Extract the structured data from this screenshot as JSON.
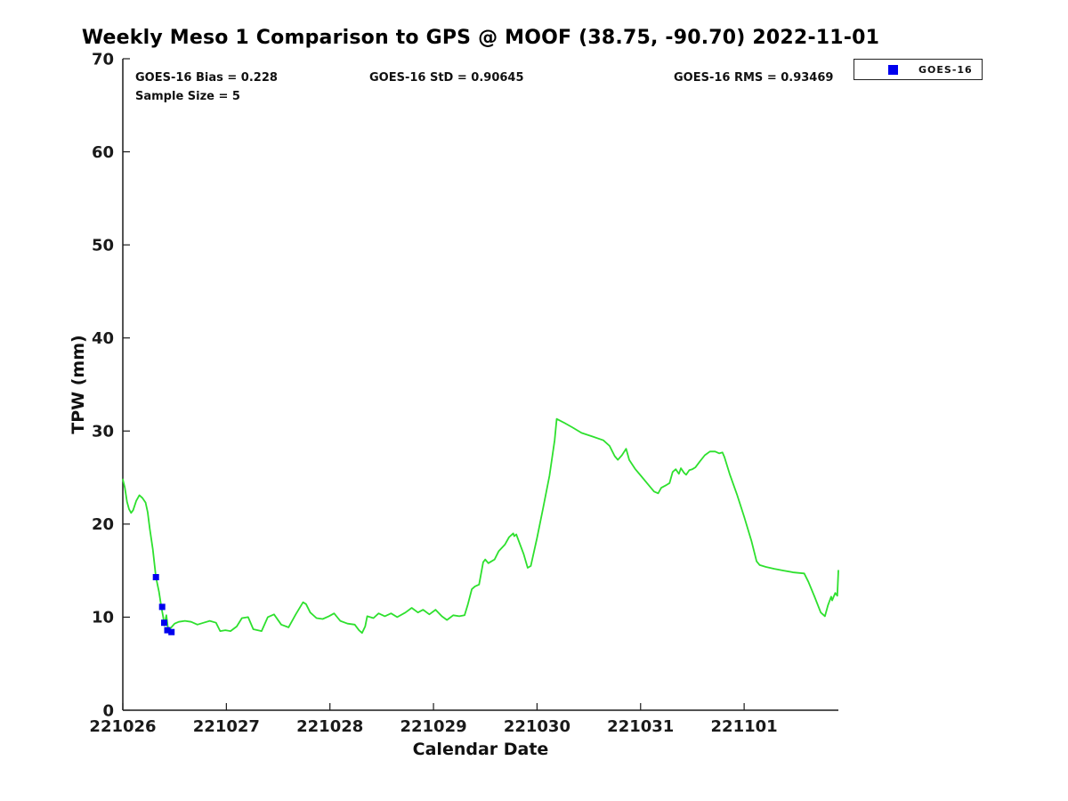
{
  "title": "Weekly Meso 1 Comparison to GPS @ MOOF (38.75, -90.70) 2022-11-01",
  "annotations": {
    "bias": "GOES-16 Bias = 0.228",
    "std": "GOES-16 StD = 0.90645",
    "rms": "GOES-16 RMS = 0.93469",
    "sample_size": "Sample Size = 5"
  },
  "legend": {
    "position": "top-right",
    "entries": [
      {
        "label": "GOES-16",
        "marker": "square",
        "marker_color": "#0000ee"
      }
    ]
  },
  "colors": {
    "gps_line": "#2ee02e",
    "goes16_marker": "#0000ee",
    "axis": "#1a1a1a",
    "background": "#ffffff"
  },
  "chart_data": {
    "type": "line",
    "title": "Weekly Meso 1 Comparison to GPS @ MOOF (38.75, -90.70) 2022-11-01",
    "xlabel": "Calendar Date",
    "ylabel": "TPW (mm)",
    "ylim": [
      0,
      70
    ],
    "yticks": [
      0,
      10,
      20,
      30,
      40,
      50,
      60,
      70
    ],
    "xtick_labels": [
      "221026",
      "221027",
      "221028",
      "221029",
      "221030",
      "221031",
      "221101"
    ],
    "xtick_positions_days": [
      0,
      1,
      2,
      3,
      4,
      5,
      6
    ],
    "xlim_days": [
      0,
      6.91
    ],
    "grid": false,
    "legend_position": "top-right",
    "series": [
      {
        "name": "GPS",
        "type": "line",
        "color": "#2ee02e",
        "points": [
          [
            0.0,
            24.8
          ],
          [
            0.02,
            23.9
          ],
          [
            0.04,
            22.4
          ],
          [
            0.06,
            21.6
          ],
          [
            0.08,
            21.2
          ],
          [
            0.1,
            21.5
          ],
          [
            0.13,
            22.5
          ],
          [
            0.16,
            23.1
          ],
          [
            0.19,
            22.8
          ],
          [
            0.22,
            22.3
          ],
          [
            0.24,
            21.3
          ],
          [
            0.26,
            19.5
          ],
          [
            0.29,
            17.3
          ],
          [
            0.32,
            14.3
          ],
          [
            0.35,
            12.7
          ],
          [
            0.37,
            11.2
          ],
          [
            0.39,
            10.0
          ],
          [
            0.4,
            9.1
          ],
          [
            0.42,
            10.2
          ],
          [
            0.44,
            8.5
          ],
          [
            0.46,
            8.8
          ],
          [
            0.5,
            9.3
          ],
          [
            0.54,
            9.5
          ],
          [
            0.6,
            9.6
          ],
          [
            0.66,
            9.5
          ],
          [
            0.72,
            9.2
          ],
          [
            0.78,
            9.4
          ],
          [
            0.84,
            9.6
          ],
          [
            0.9,
            9.4
          ],
          [
            0.94,
            8.5
          ],
          [
            0.99,
            8.6
          ],
          [
            1.04,
            8.5
          ],
          [
            1.1,
            9.0
          ],
          [
            1.15,
            9.9
          ],
          [
            1.21,
            10.0
          ],
          [
            1.26,
            8.7
          ],
          [
            1.34,
            8.5
          ],
          [
            1.4,
            10.0
          ],
          [
            1.46,
            10.3
          ],
          [
            1.53,
            9.2
          ],
          [
            1.6,
            8.9
          ],
          [
            1.67,
            10.3
          ],
          [
            1.74,
            11.6
          ],
          [
            1.77,
            11.4
          ],
          [
            1.81,
            10.5
          ],
          [
            1.87,
            9.9
          ],
          [
            1.93,
            9.8
          ],
          [
            1.99,
            10.1
          ],
          [
            2.04,
            10.4
          ],
          [
            2.1,
            9.6
          ],
          [
            2.17,
            9.3
          ],
          [
            2.24,
            9.2
          ],
          [
            2.28,
            8.6
          ],
          [
            2.31,
            8.3
          ],
          [
            2.34,
            9.0
          ],
          [
            2.36,
            10.1
          ],
          [
            2.42,
            9.9
          ],
          [
            2.47,
            10.4
          ],
          [
            2.53,
            10.1
          ],
          [
            2.59,
            10.4
          ],
          [
            2.65,
            10.0
          ],
          [
            2.73,
            10.5
          ],
          [
            2.79,
            11.0
          ],
          [
            2.85,
            10.5
          ],
          [
            2.9,
            10.8
          ],
          [
            2.96,
            10.3
          ],
          [
            3.02,
            10.8
          ],
          [
            3.08,
            10.1
          ],
          [
            3.13,
            9.7
          ],
          [
            3.19,
            10.2
          ],
          [
            3.25,
            10.1
          ],
          [
            3.3,
            10.2
          ],
          [
            3.33,
            11.3
          ],
          [
            3.37,
            13.0
          ],
          [
            3.4,
            13.3
          ],
          [
            3.44,
            13.5
          ],
          [
            3.48,
            15.9
          ],
          [
            3.5,
            16.2
          ],
          [
            3.53,
            15.8
          ],
          [
            3.56,
            16.0
          ],
          [
            3.59,
            16.2
          ],
          [
            3.63,
            17.1
          ],
          [
            3.69,
            17.8
          ],
          [
            3.73,
            18.6
          ],
          [
            3.77,
            19.0
          ],
          [
            3.78,
            18.7
          ],
          [
            3.8,
            18.9
          ],
          [
            3.83,
            18.0
          ],
          [
            3.87,
            16.8
          ],
          [
            3.91,
            15.3
          ],
          [
            3.94,
            15.5
          ],
          [
            4.0,
            18.5
          ],
          [
            4.06,
            21.8
          ],
          [
            4.12,
            25.2
          ],
          [
            4.17,
            29.0
          ],
          [
            4.19,
            31.3
          ],
          [
            4.26,
            30.9
          ],
          [
            4.34,
            30.4
          ],
          [
            4.43,
            29.8
          ],
          [
            4.54,
            29.4
          ],
          [
            4.64,
            29.0
          ],
          [
            4.7,
            28.4
          ],
          [
            4.75,
            27.3
          ],
          [
            4.78,
            26.9
          ],
          [
            4.82,
            27.4
          ],
          [
            4.86,
            28.1
          ],
          [
            4.89,
            26.9
          ],
          [
            4.95,
            25.9
          ],
          [
            5.01,
            25.1
          ],
          [
            5.07,
            24.3
          ],
          [
            5.13,
            23.5
          ],
          [
            5.17,
            23.3
          ],
          [
            5.2,
            23.9
          ],
          [
            5.25,
            24.2
          ],
          [
            5.28,
            24.4
          ],
          [
            5.31,
            25.6
          ],
          [
            5.34,
            25.9
          ],
          [
            5.37,
            25.4
          ],
          [
            5.39,
            26.0
          ],
          [
            5.42,
            25.5
          ],
          [
            5.44,
            25.3
          ],
          [
            5.47,
            25.8
          ],
          [
            5.5,
            25.9
          ],
          [
            5.53,
            26.1
          ],
          [
            5.57,
            26.7
          ],
          [
            5.62,
            27.4
          ],
          [
            5.67,
            27.8
          ],
          [
            5.72,
            27.8
          ],
          [
            5.76,
            27.6
          ],
          [
            5.79,
            27.7
          ],
          [
            5.81,
            27.2
          ],
          [
            5.86,
            25.4
          ],
          [
            5.93,
            23.2
          ],
          [
            6.0,
            20.8
          ],
          [
            6.07,
            18.2
          ],
          [
            6.12,
            16.0
          ],
          [
            6.15,
            15.6
          ],
          [
            6.21,
            15.4
          ],
          [
            6.29,
            15.2
          ],
          [
            6.38,
            15.0
          ],
          [
            6.48,
            14.8
          ],
          [
            6.58,
            14.7
          ],
          [
            6.62,
            13.8
          ],
          [
            6.68,
            12.2
          ],
          [
            6.74,
            10.5
          ],
          [
            6.78,
            10.1
          ],
          [
            6.81,
            11.3
          ],
          [
            6.84,
            12.2
          ],
          [
            6.85,
            11.8
          ],
          [
            6.88,
            12.6
          ],
          [
            6.9,
            12.3
          ],
          [
            6.91,
            15.0
          ]
        ]
      },
      {
        "name": "GOES-16",
        "type": "scatter",
        "marker": "square",
        "color": "#0000ee",
        "points": [
          [
            0.32,
            14.3
          ],
          [
            0.38,
            11.1
          ],
          [
            0.4,
            9.4
          ],
          [
            0.43,
            8.6
          ],
          [
            0.47,
            8.4
          ]
        ]
      }
    ]
  }
}
